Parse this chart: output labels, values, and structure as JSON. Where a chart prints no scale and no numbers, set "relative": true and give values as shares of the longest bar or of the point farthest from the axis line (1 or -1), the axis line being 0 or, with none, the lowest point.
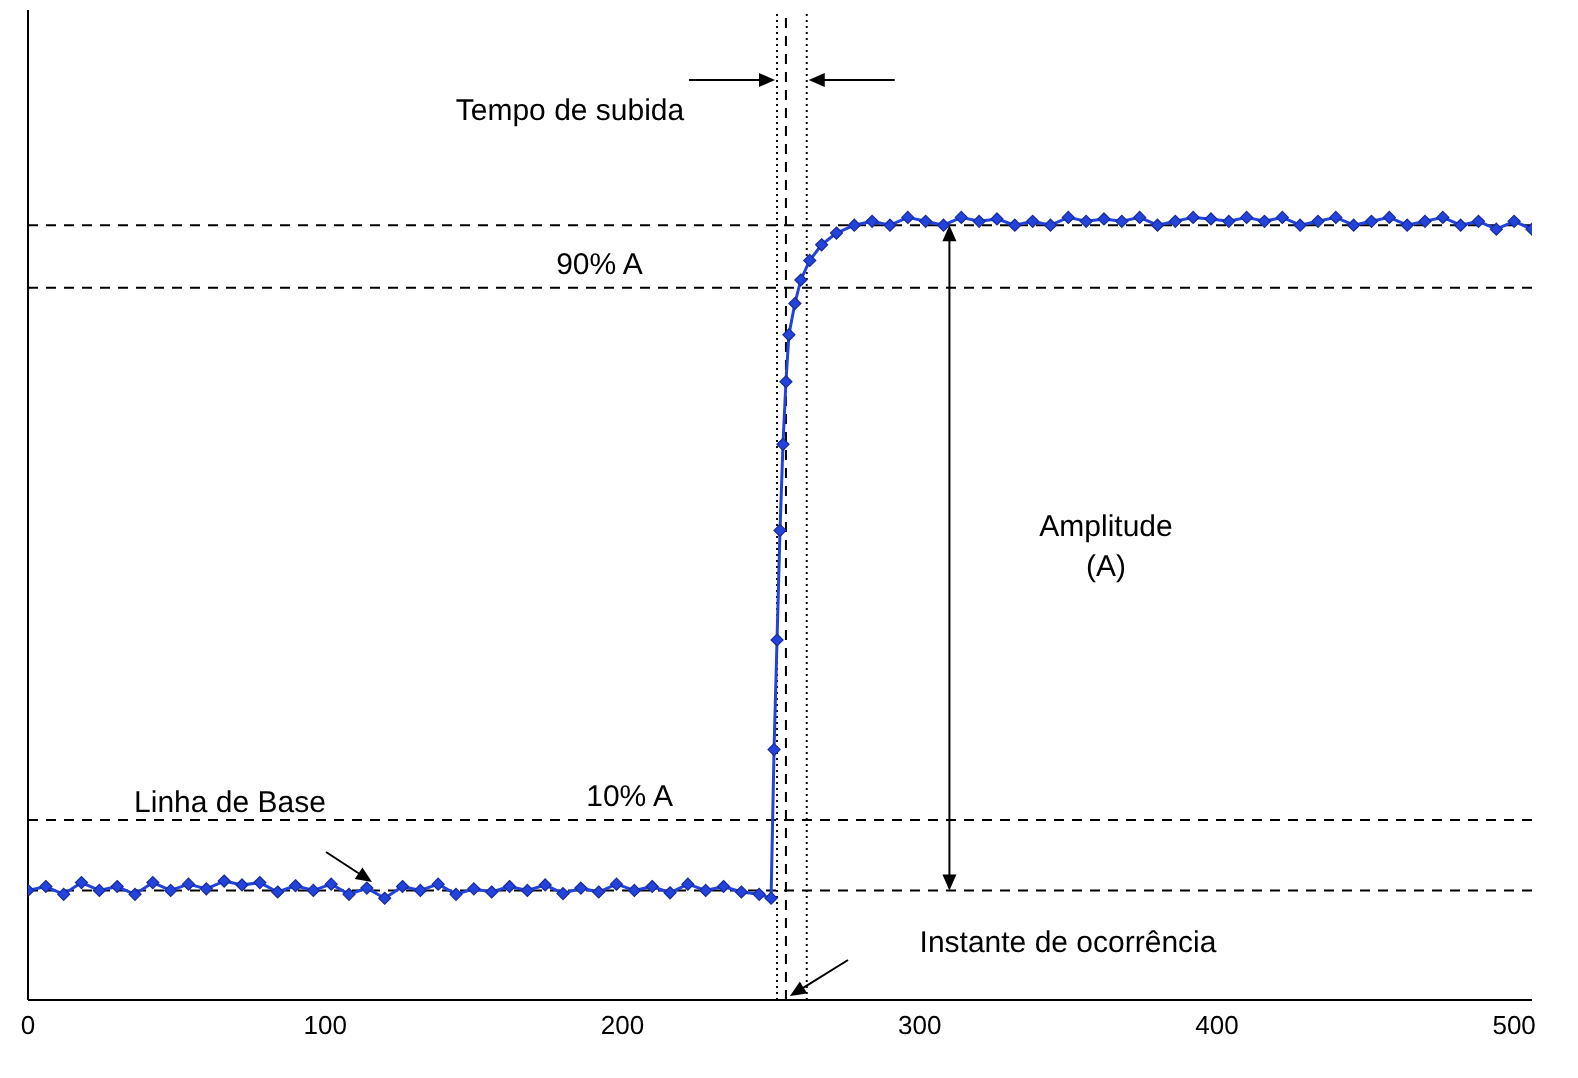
{
  "chart_data": {
    "type": "line",
    "relative": true,
    "marker": "diamond",
    "line_style": "solid",
    "xlim": [
      0,
      506
    ],
    "xticks": [
      0,
      100,
      200,
      300,
      400,
      500
    ],
    "x": [
      0,
      6,
      12,
      18,
      24,
      30,
      36,
      42,
      48,
      54,
      60,
      66,
      72,
      78,
      84,
      90,
      96,
      102,
      108,
      114,
      120,
      126,
      132,
      138,
      144,
      150,
      156,
      162,
      168,
      174,
      180,
      186,
      192,
      198,
      204,
      210,
      216,
      222,
      228,
      234,
      240,
      246,
      250,
      251,
      252,
      253,
      254,
      255,
      256,
      258,
      260,
      263,
      267,
      272,
      278,
      284,
      290,
      296,
      302,
      308,
      314,
      320,
      326,
      332,
      338,
      344,
      350,
      356,
      362,
      368,
      374,
      380,
      386,
      392,
      398,
      404,
      410,
      416,
      422,
      428,
      434,
      440,
      446,
      452,
      458,
      464,
      470,
      476,
      482,
      488,
      494,
      500,
      506
    ],
    "series": [
      {
        "color": "#2244dd",
        "values": [
          0.14,
          0.145,
          0.135,
          0.15,
          0.14,
          0.145,
          0.135,
          0.15,
          0.14,
          0.148,
          0.142,
          0.152,
          0.147,
          0.15,
          0.138,
          0.146,
          0.14,
          0.148,
          0.135,
          0.143,
          0.13,
          0.145,
          0.14,
          0.148,
          0.135,
          0.142,
          0.138,
          0.145,
          0.14,
          0.147,
          0.136,
          0.143,
          0.138,
          0.148,
          0.14,
          0.145,
          0.137,
          0.148,
          0.14,
          0.145,
          0.138,
          0.135,
          0.13,
          0.32,
          0.46,
          0.6,
          0.71,
          0.79,
          0.85,
          0.89,
          0.92,
          0.945,
          0.965,
          0.98,
          0.99,
          0.995,
          0.99,
          1.0,
          0.995,
          0.99,
          1.0,
          0.995,
          0.998,
          0.99,
          0.995,
          0.99,
          1.0,
          0.995,
          0.998,
          0.995,
          1.0,
          0.99,
          0.995,
          1.0,
          0.998,
          0.995,
          1.0,
          0.995,
          1.0,
          0.99,
          0.995,
          1.0,
          0.99,
          0.995,
          1.0,
          0.99,
          0.995,
          1.0,
          0.99,
          0.995,
          0.985,
          0.995,
          0.985
        ]
      }
    ],
    "ref_lines": [
      {
        "axis": "y",
        "value": 0.99,
        "line_style": "dashed",
        "color": "#000000"
      },
      {
        "axis": "y",
        "value": 0.91,
        "label": "90% A",
        "line_style": "dashed",
        "color": "#000000"
      },
      {
        "axis": "y",
        "value": 0.23,
        "label": "10% A",
        "line_style": "dashed",
        "color": "#000000"
      },
      {
        "axis": "y",
        "value": 0.14,
        "line_style": "dashed",
        "color": "#000000"
      },
      {
        "axis": "x",
        "value": 252,
        "line_style": "dotted",
        "color": "#000000"
      },
      {
        "axis": "x",
        "value": 262,
        "line_style": "dotted",
        "color": "#000000"
      },
      {
        "axis": "x",
        "value": 255,
        "line_style": "dashed",
        "color": "#000000"
      }
    ],
    "annotations": [
      "Tempo de subida",
      "Amplitude (A)",
      "Linha de Base",
      "Instante de ocorrência"
    ]
  }
}
